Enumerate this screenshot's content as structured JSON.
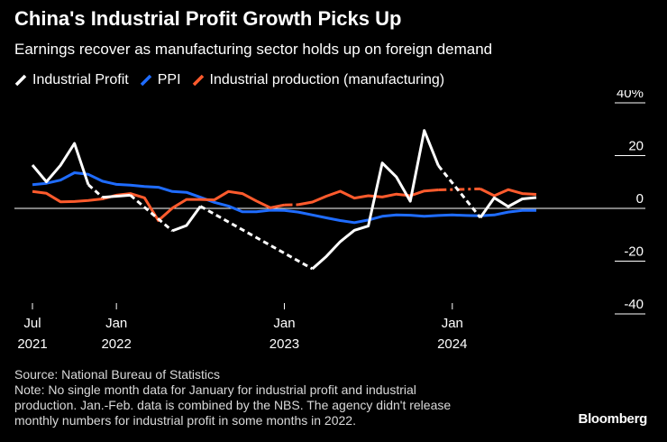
{
  "title": "China's Industrial Profit Growth Picks Up",
  "subtitle": "Earnings recover as manufacturing sector holds up on foreign demand",
  "legend": [
    {
      "label": "Industrial Profit",
      "color": "#ffffff"
    },
    {
      "label": "PPI",
      "color": "#1f6cff"
    },
    {
      "label": "Industrial production (manufacturing)",
      "color": "#ff5b2d"
    }
  ],
  "footer": {
    "source": "Source: National Bureau of Statistics",
    "note_lines": [
      "Note: No single month data for January for industrial profit and industrial",
      "production. Jan.-Feb. data is combined by the NBS. The agency didn't release",
      "monthly numbers for industrial profit in some months in 2022."
    ]
  },
  "brand": "Bloomberg",
  "chart_data": {
    "type": "line",
    "title": "China's Industrial Profit Growth Picks Up",
    "ylim": [
      -40,
      40
    ],
    "yticks": [
      {
        "value": 40,
        "label": "40%"
      },
      {
        "value": 20,
        "label": "20"
      },
      {
        "value": 0,
        "label": "0"
      },
      {
        "value": -20,
        "label": "-20"
      },
      {
        "value": -40,
        "label": "-40"
      }
    ],
    "xlim": [
      2021.5,
      2024.833
    ],
    "xticks": [
      {
        "value": 2021.5,
        "line1": "Jul",
        "line2": "2021"
      },
      {
        "value": 2022.0,
        "line1": "Jan",
        "line2": "2022"
      },
      {
        "value": 2023.0,
        "line1": "Jan",
        "line2": "2023"
      },
      {
        "value": 2024.0,
        "line1": "Jan",
        "line2": "2024"
      }
    ],
    "series": [
      {
        "name": "Industrial Profit",
        "color": "#ffffff",
        "segments": [
          {
            "style": "solid",
            "points": [
              [
                2021.5,
                16.4
              ],
              [
                2021.583,
                10.1
              ],
              [
                2021.667,
                16.3
              ],
              [
                2021.75,
                24.6
              ],
              [
                2021.833,
                9.0
              ]
            ]
          },
          {
            "style": "dashed",
            "points": [
              [
                2021.833,
                9.0
              ],
              [
                2021.917,
                4.2
              ]
            ]
          },
          {
            "style": "solid",
            "points": [
              [
                2021.917,
                4.2
              ],
              [
                2022.083,
                5.0
              ]
            ]
          },
          {
            "style": "dashed",
            "points": [
              [
                2022.083,
                5.0
              ],
              [
                2022.333,
                -8.5
              ]
            ]
          },
          {
            "style": "solid",
            "points": [
              [
                2022.333,
                -8.5
              ],
              [
                2022.417,
                -6.5
              ],
              [
                2022.5,
                0.8
              ]
            ]
          },
          {
            "style": "dashed",
            "points": [
              [
                2022.5,
                0.8
              ],
              [
                2023.167,
                -22.9
              ]
            ]
          },
          {
            "style": "solid",
            "points": [
              [
                2023.167,
                -22.9
              ],
              [
                2023.25,
                -18.2
              ],
              [
                2023.333,
                -12.6
              ],
              [
                2023.417,
                -8.3
              ],
              [
                2023.5,
                -6.7
              ],
              [
                2023.583,
                17.2
              ],
              [
                2023.667,
                11.9
              ],
              [
                2023.75,
                2.7
              ],
              [
                2023.833,
                29.5
              ],
              [
                2023.917,
                16.2
              ]
            ]
          },
          {
            "style": "dashed",
            "points": [
              [
                2023.917,
                16.2
              ],
              [
                2024.167,
                -3.5
              ]
            ]
          },
          {
            "style": "solid",
            "points": [
              [
                2024.167,
                -3.5
              ],
              [
                2024.25,
                4.0
              ],
              [
                2024.333,
                0.7
              ],
              [
                2024.417,
                3.6
              ],
              [
                2024.5,
                4.1
              ]
            ]
          }
        ]
      },
      {
        "name": "PPI",
        "color": "#1f6cff",
        "segments": [
          {
            "style": "solid",
            "points": [
              [
                2021.5,
                9.0
              ],
              [
                2021.583,
                9.5
              ],
              [
                2021.667,
                10.7
              ],
              [
                2021.75,
                13.5
              ],
              [
                2021.833,
                12.9
              ],
              [
                2021.917,
                10.3
              ],
              [
                2022.0,
                9.1
              ],
              [
                2022.083,
                8.8
              ],
              [
                2022.167,
                8.3
              ],
              [
                2022.25,
                8.0
              ],
              [
                2022.333,
                6.4
              ],
              [
                2022.417,
                6.1
              ],
              [
                2022.5,
                4.2
              ],
              [
                2022.583,
                2.3
              ],
              [
                2022.667,
                0.9
              ],
              [
                2022.75,
                -1.3
              ],
              [
                2022.833,
                -1.3
              ],
              [
                2022.917,
                -0.7
              ],
              [
                2023.0,
                -0.8
              ],
              [
                2023.083,
                -1.4
              ],
              [
                2023.167,
                -2.5
              ],
              [
                2023.25,
                -3.6
              ],
              [
                2023.333,
                -4.6
              ],
              [
                2023.417,
                -5.4
              ],
              [
                2023.5,
                -4.4
              ],
              [
                2023.583,
                -3.0
              ],
              [
                2023.667,
                -2.5
              ],
              [
                2023.75,
                -2.6
              ],
              [
                2023.833,
                -3.0
              ],
              [
                2023.917,
                -2.7
              ],
              [
                2024.0,
                -2.5
              ],
              [
                2024.083,
                -2.7
              ],
              [
                2024.167,
                -2.8
              ],
              [
                2024.25,
                -2.5
              ],
              [
                2024.333,
                -1.4
              ],
              [
                2024.417,
                -0.8
              ],
              [
                2024.5,
                -0.8
              ]
            ]
          }
        ]
      },
      {
        "name": "Industrial production (manufacturing)",
        "color": "#ff5b2d",
        "segments": [
          {
            "style": "solid",
            "points": [
              [
                2021.5,
                6.4
              ],
              [
                2021.583,
                5.7
              ],
              [
                2021.667,
                2.5
              ],
              [
                2021.75,
                2.6
              ],
              [
                2021.833,
                3.0
              ],
              [
                2021.917,
                3.6
              ],
              [
                2022.0,
                5.0
              ],
              [
                2022.083,
                5.6
              ],
              [
                2022.167,
                4.0
              ],
              [
                2022.25,
                -4.6
              ],
              [
                2022.333,
                0.1
              ],
              [
                2022.417,
                3.4
              ],
              [
                2022.5,
                3.4
              ],
              [
                2022.583,
                3.2
              ],
              [
                2022.667,
                6.4
              ],
              [
                2022.75,
                5.6
              ],
              [
                2022.833,
                2.8
              ],
              [
                2022.917,
                0.2
              ],
              [
                2023.0,
                1.3
              ]
            ]
          },
          {
            "style": "dashdot",
            "points": [
              [
                2023.0,
                1.3
              ],
              [
                2023.083,
                1.4
              ]
            ]
          },
          {
            "style": "solid",
            "points": [
              [
                2023.083,
                1.4
              ],
              [
                2023.167,
                2.4
              ],
              [
                2023.25,
                4.6
              ],
              [
                2023.333,
                6.5
              ],
              [
                2023.417,
                3.9
              ],
              [
                2023.5,
                4.8
              ],
              [
                2023.583,
                4.3
              ],
              [
                2023.667,
                5.4
              ],
              [
                2023.75,
                4.8
              ],
              [
                2023.833,
                6.6
              ],
              [
                2023.917,
                7.0
              ]
            ]
          },
          {
            "style": "dashdot",
            "points": [
              [
                2023.917,
                7.0
              ],
              [
                2024.167,
                7.4
              ]
            ]
          },
          {
            "style": "solid",
            "points": [
              [
                2024.167,
                7.4
              ],
              [
                2024.25,
                4.8
              ],
              [
                2024.333,
                7.1
              ],
              [
                2024.417,
                5.6
              ],
              [
                2024.5,
                5.3
              ]
            ]
          }
        ]
      }
    ]
  }
}
